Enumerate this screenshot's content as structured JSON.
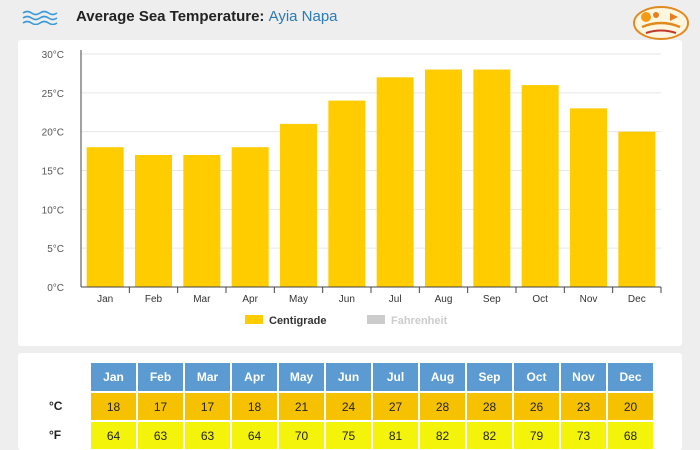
{
  "header": {
    "title": "Average Sea Temperature:",
    "location": "Ayia Napa",
    "logo_icon": "site-logo-icon",
    "wave_icon": "wave-icon"
  },
  "colors": {
    "bar": "#ffcc00",
    "fahrenheit_legend": "#cccccc",
    "header_cell": "#5b9bd1",
    "row_c": "#f6c200",
    "row_f": "#f4f40a"
  },
  "chart_data": {
    "type": "bar",
    "categories": [
      "Jan",
      "Feb",
      "Mar",
      "Apr",
      "May",
      "Jun",
      "Jul",
      "Aug",
      "Sep",
      "Oct",
      "Nov",
      "Dec"
    ],
    "series": [
      {
        "name": "Centigrade",
        "values": [
          18,
          17,
          17,
          18,
          21,
          24,
          27,
          28,
          28,
          26,
          23,
          20
        ],
        "visible": true
      },
      {
        "name": "Fahrenheit",
        "values": [
          64,
          63,
          63,
          64,
          70,
          75,
          81,
          82,
          82,
          79,
          73,
          68
        ],
        "visible": false
      }
    ],
    "yticks": [
      "0°C",
      "5°C",
      "10°C",
      "15°C",
      "20°C",
      "25°C",
      "30°C"
    ],
    "ylim": [
      0,
      30
    ],
    "ytick_step": 5,
    "legend_position": "bottom-center"
  },
  "table": {
    "months": [
      "Jan",
      "Feb",
      "Mar",
      "Apr",
      "May",
      "Jun",
      "Jul",
      "Aug",
      "Sep",
      "Oct",
      "Nov",
      "Dec"
    ],
    "celsius_label": "°C",
    "fahrenheit_label": "°F",
    "celsius": [
      "18",
      "17",
      "17",
      "18",
      "21",
      "24",
      "27",
      "28",
      "28",
      "26",
      "23",
      "20"
    ],
    "fahrenheit": [
      "64",
      "63",
      "63",
      "64",
      "70",
      "75",
      "81",
      "82",
      "82",
      "79",
      "73",
      "68"
    ]
  }
}
